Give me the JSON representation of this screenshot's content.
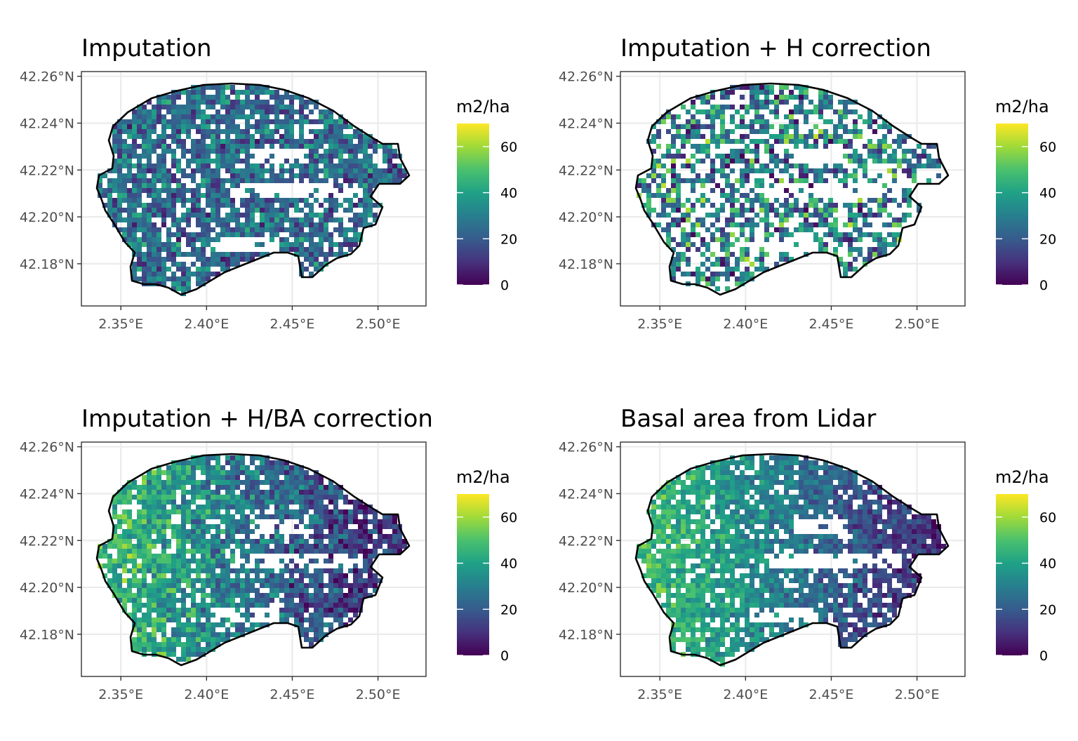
{
  "chart_data": [
    {
      "type": "heatmap",
      "title": "Imputation",
      "legend_title": "m2/ha",
      "legend_ticks": [
        "0",
        "20",
        "40",
        "60"
      ],
      "colorscale": "viridis",
      "value_range": [
        0,
        70
      ],
      "x_ticks": [
        "2.35°E",
        "2.40°E",
        "2.45°E",
        "2.50°E"
      ],
      "y_ticks": [
        "42.18°N",
        "42.20°N",
        "42.22°N",
        "42.24°N",
        "42.26°N"
      ],
      "xlim": [
        2.327,
        2.528
      ],
      "ylim": [
        42.162,
        42.262
      ],
      "mean_value": 25,
      "value_spread": 14,
      "missing_fraction": 0.16,
      "gradient": "uniform"
    },
    {
      "type": "heatmap",
      "title": "Imputation + H correction",
      "legend_title": "m2/ha",
      "legend_ticks": [
        "0",
        "20",
        "40",
        "60"
      ],
      "colorscale": "viridis",
      "value_range": [
        0,
        70
      ],
      "x_ticks": [
        "2.35°E",
        "2.40°E",
        "2.45°E",
        "2.50°E"
      ],
      "y_ticks": [
        "42.18°N",
        "42.20°N",
        "42.22°N",
        "42.24°N",
        "42.26°N"
      ],
      "xlim": [
        2.327,
        2.528
      ],
      "ylim": [
        42.162,
        42.262
      ],
      "mean_value": 30,
      "value_spread": 22,
      "missing_fraction": 0.42,
      "gradient": "uniform"
    },
    {
      "type": "heatmap",
      "title": "Imputation + H/BA correction",
      "legend_title": "m2/ha",
      "legend_ticks": [
        "0",
        "20",
        "40",
        "60"
      ],
      "colorscale": "viridis",
      "value_range": [
        0,
        70
      ],
      "x_ticks": [
        "2.35°E",
        "2.40°E",
        "2.45°E",
        "2.50°E"
      ],
      "y_ticks": [
        "42.18°N",
        "42.20°N",
        "42.22°N",
        "42.24°N",
        "42.26°N"
      ],
      "xlim": [
        2.327,
        2.528
      ],
      "ylim": [
        42.162,
        42.262
      ],
      "mean_value": 33,
      "value_spread": 13,
      "missing_fraction": 0.14,
      "gradient": "higher-west"
    },
    {
      "type": "heatmap",
      "title": "Basal area from Lidar",
      "legend_title": "m2/ha",
      "legend_ticks": [
        "0",
        "20",
        "40",
        "60"
      ],
      "colorscale": "viridis",
      "value_range": [
        0,
        70
      ],
      "x_ticks": [
        "2.35°E",
        "2.40°E",
        "2.45°E",
        "2.50°E"
      ],
      "y_ticks": [
        "42.18°N",
        "42.20°N",
        "42.22°N",
        "42.24°N",
        "42.26°N"
      ],
      "xlim": [
        2.327,
        2.528
      ],
      "ylim": [
        42.162,
        42.262
      ],
      "mean_value": 34,
      "value_spread": 9,
      "missing_fraction": 0.16,
      "gradient": "higher-west"
    }
  ]
}
